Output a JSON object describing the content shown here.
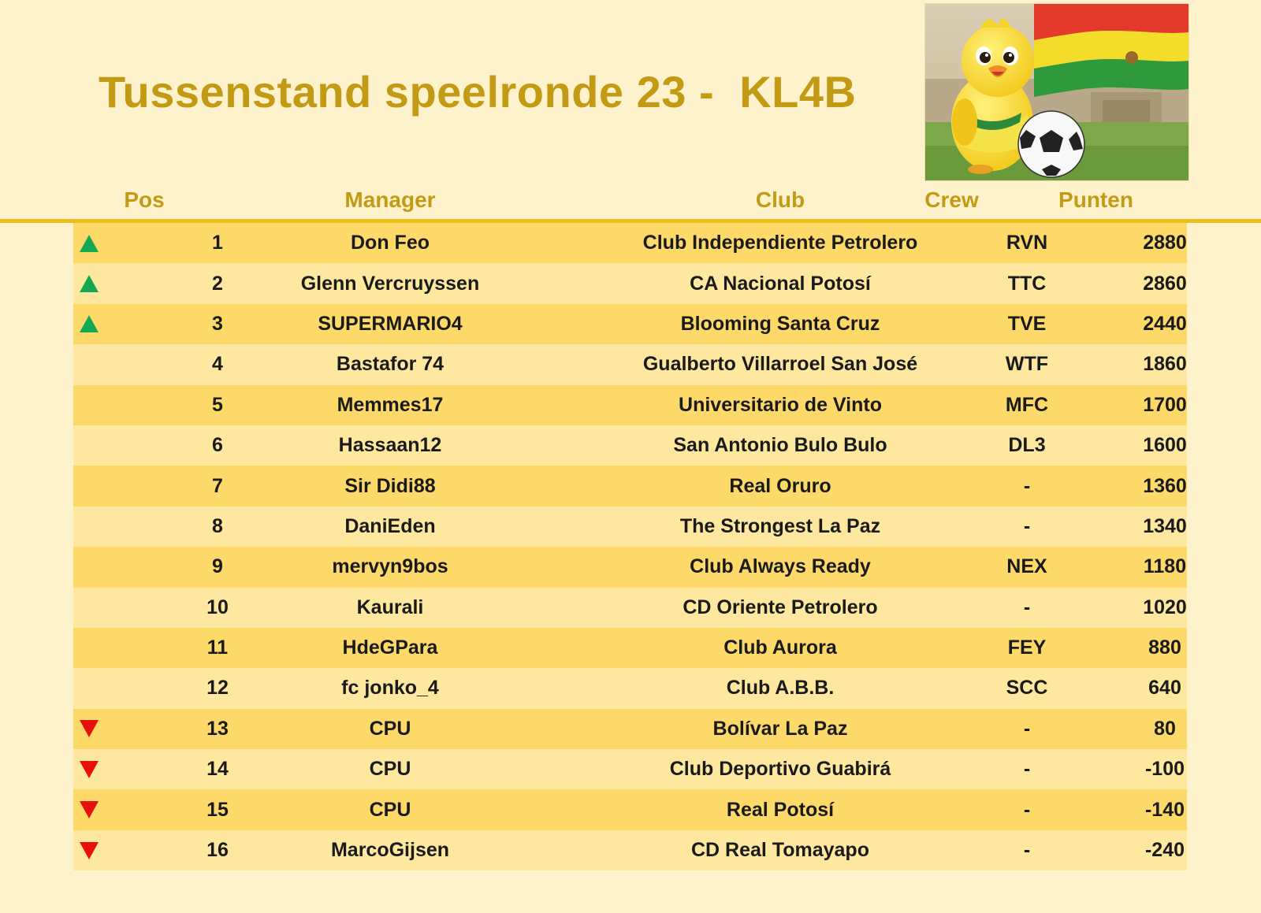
{
  "title": "Tussenstand speelronde 23 -  KL4B",
  "columns": {
    "pos": "Pos",
    "manager": "Manager",
    "club": "Club",
    "crew": "Crew",
    "points": "Punten"
  },
  "colors": {
    "title": "#c39a14",
    "row_odd": "#fdd96a",
    "row_even": "#fee8a0",
    "up": "#14a852",
    "down": "#e8100c"
  },
  "illustration": {
    "icon": "canary-mascot-with-football-and-bolivian-flag"
  },
  "rows": [
    {
      "trend": "up",
      "pos": "1",
      "manager": "Don Feo",
      "club": "Club Independiente Petrolero",
      "crew": "RVN",
      "points": "2880"
    },
    {
      "trend": "up",
      "pos": "2",
      "manager": "Glenn Vercruyssen",
      "club": "CA Nacional Potosí",
      "crew": "TTC",
      "points": "2860"
    },
    {
      "trend": "up",
      "pos": "3",
      "manager": "SUPERMARIO4",
      "club": "Blooming Santa Cruz",
      "crew": "TVE",
      "points": "2440"
    },
    {
      "trend": "",
      "pos": "4",
      "manager": "Bastafor 74",
      "club": "Gualberto Villarroel San José",
      "crew": "WTF",
      "points": "1860"
    },
    {
      "trend": "",
      "pos": "5",
      "manager": "Memmes17",
      "club": "Universitario de Vinto",
      "crew": "MFC",
      "points": "1700"
    },
    {
      "trend": "",
      "pos": "6",
      "manager": "Hassaan12",
      "club": "San Antonio Bulo Bulo",
      "crew": "DL3",
      "points": "1600"
    },
    {
      "trend": "",
      "pos": "7",
      "manager": "Sir Didi88",
      "club": "Real Oruro",
      "crew": "-",
      "points": "1360"
    },
    {
      "trend": "",
      "pos": "8",
      "manager": "DaniEden",
      "club": "The Strongest La Paz",
      "crew": "-",
      "points": "1340"
    },
    {
      "trend": "",
      "pos": "9",
      "manager": "mervyn9bos",
      "club": "Club Always Ready",
      "crew": "NEX",
      "points": "1180"
    },
    {
      "trend": "",
      "pos": "10",
      "manager": "Kaurali",
      "club": "CD Oriente Petrolero",
      "crew": "-",
      "points": "1020"
    },
    {
      "trend": "",
      "pos": "11",
      "manager": "HdeGPara",
      "club": "Club Aurora",
      "crew": "FEY",
      "points": "880"
    },
    {
      "trend": "",
      "pos": "12",
      "manager": "fc jonko_4",
      "club": "Club A.B.B.",
      "crew": "SCC",
      "points": "640"
    },
    {
      "trend": "down",
      "pos": "13",
      "manager": "CPU",
      "club": "Bolívar La Paz",
      "crew": "-",
      "points": "80"
    },
    {
      "trend": "down",
      "pos": "14",
      "manager": "CPU",
      "club": "Club Deportivo Guabirá",
      "crew": "-",
      "points": "-100"
    },
    {
      "trend": "down",
      "pos": "15",
      "manager": "CPU",
      "club": "Real Potosí",
      "crew": "-",
      "points": "-140"
    },
    {
      "trend": "down",
      "pos": "16",
      "manager": "MarcoGijsen",
      "club": "CD Real Tomayapo",
      "crew": "-",
      "points": "-240"
    }
  ]
}
